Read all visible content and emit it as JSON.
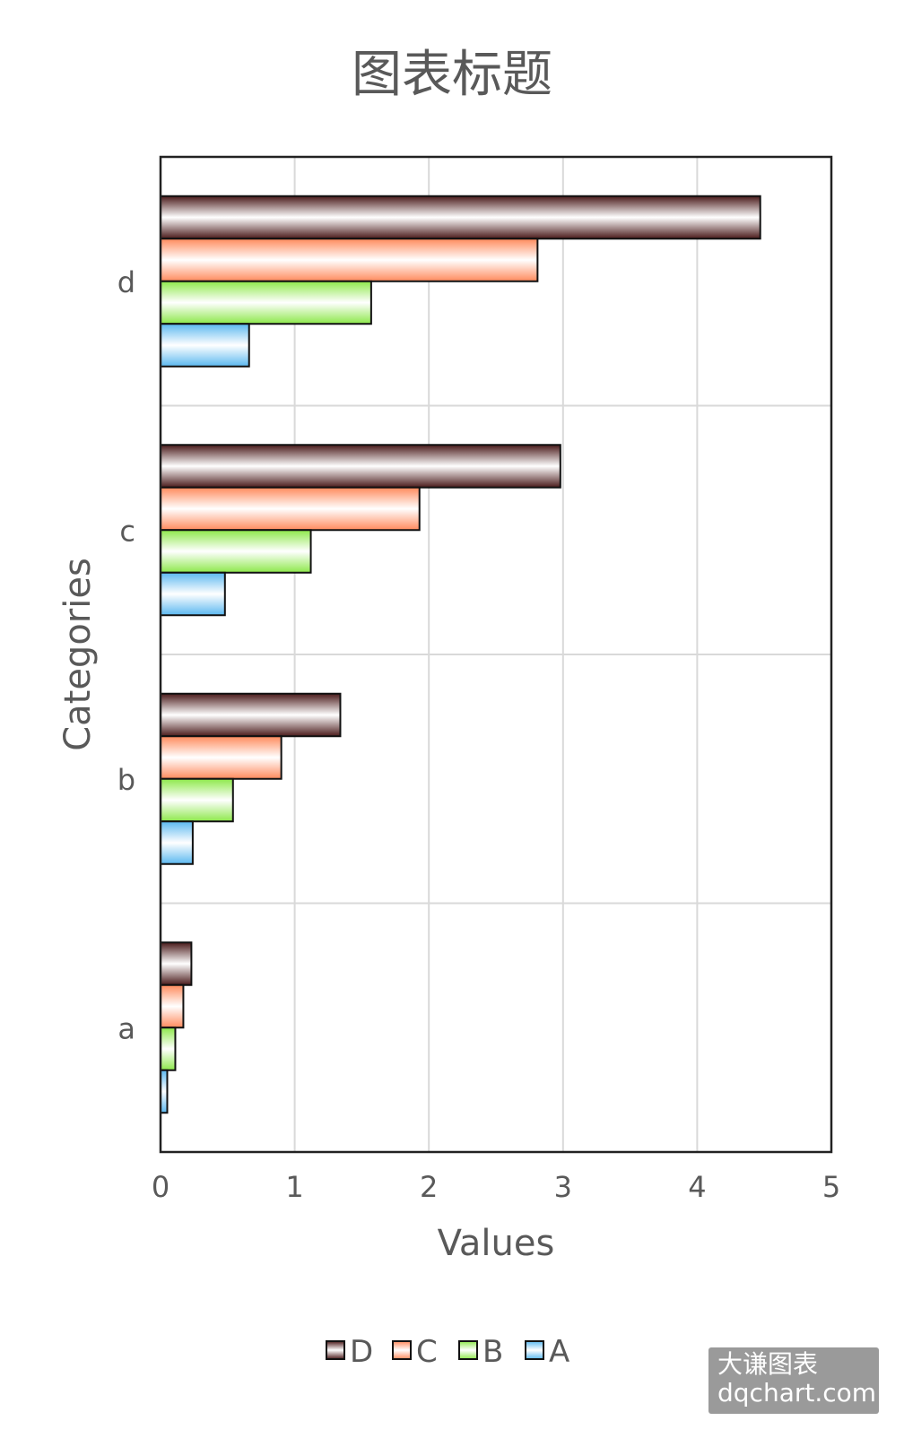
{
  "chart_data": {
    "type": "bar",
    "orientation": "horizontal",
    "title": "图表标题",
    "xlabel": "Values",
    "ylabel": "Categories",
    "categories": [
      "a",
      "b",
      "c",
      "d"
    ],
    "xlim": [
      0,
      5
    ],
    "x_ticks": [
      "0",
      "1",
      "2",
      "3",
      "4",
      "5"
    ],
    "grid": true,
    "legend_position": "bottom",
    "series": [
      {
        "name": "A",
        "values": [
          0.05,
          0.24,
          0.48,
          0.66
        ],
        "color": "#5bb8f0"
      },
      {
        "name": "B",
        "values": [
          0.11,
          0.54,
          1.12,
          1.57
        ],
        "color": "#8de84a"
      },
      {
        "name": "C",
        "values": [
          0.17,
          0.9,
          1.93,
          2.81
        ],
        "color": "#ff8a5c"
      },
      {
        "name": "D",
        "values": [
          0.23,
          1.34,
          2.98,
          4.47
        ],
        "color": "#4a1a1a"
      }
    ]
  },
  "watermark": {
    "line1": "大谦图表",
    "line2": "dqchart.com"
  }
}
